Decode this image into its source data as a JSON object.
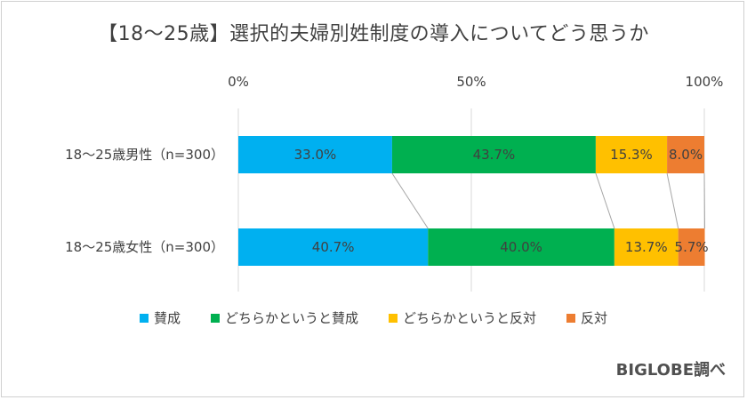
{
  "title": "【18～25歳】選択的夫婦別姓制度の導入についてどう思うか",
  "credit": "BIGLOBE調べ",
  "chart_data": {
    "type": "bar",
    "orientation": "horizontal",
    "stacked": "percent",
    "xlim": [
      0,
      100
    ],
    "x_ticks": [
      "0%",
      "50%",
      "100%"
    ],
    "x_tick_values": [
      0,
      50,
      100
    ],
    "x_axis_position": "top",
    "grid": true,
    "legend_position": "bottom",
    "categories": [
      "18～25歳男性（n=300）",
      "18～25歳女性（n=300）"
    ],
    "series": [
      {
        "name": "賛成",
        "color": "#00b0f0",
        "values": [
          33.0,
          40.7
        ],
        "labels": [
          "33.0%",
          "40.7%"
        ]
      },
      {
        "name": "どちらかというと賛成",
        "color": "#00b050",
        "values": [
          43.7,
          40.0
        ],
        "labels": [
          "43.7%",
          "40.0%"
        ]
      },
      {
        "name": "どちらかというと反対",
        "color": "#ffc000",
        "values": [
          15.3,
          13.7
        ],
        "labels": [
          "15.3%",
          "13.7%"
        ]
      },
      {
        "name": "反対",
        "color": "#ed7d31",
        "values": [
          8.0,
          5.7
        ],
        "labels": [
          "8.0%",
          "5.7%"
        ]
      }
    ],
    "series_lines": true
  }
}
